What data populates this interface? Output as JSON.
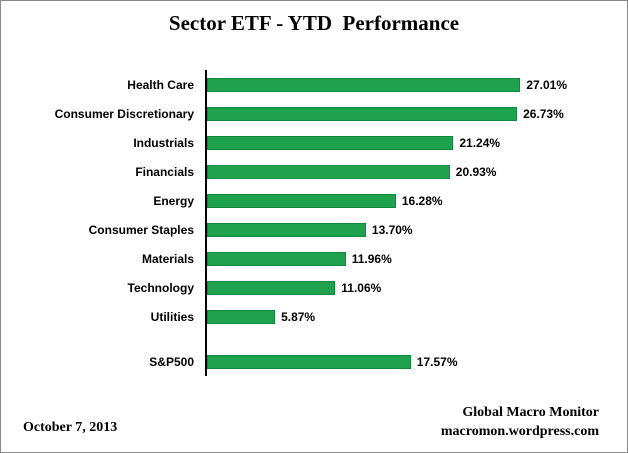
{
  "chart_data": {
    "type": "bar",
    "orientation": "horizontal",
    "title": "Sector ETF - YTD  Performance",
    "categories": [
      "Health Care",
      "Consumer Discretionary",
      "Industrials",
      "Financials",
      "Energy",
      "Consumer Staples",
      "Materials",
      "Technology",
      "Utilities",
      "S&P500"
    ],
    "values": [
      27.01,
      26.73,
      21.24,
      20.93,
      16.28,
      13.7,
      11.96,
      11.06,
      5.87,
      17.57
    ],
    "value_suffix": "%",
    "gap_before_index": 9,
    "xlim": [
      0,
      28
    ],
    "grid": false,
    "legend": "none",
    "bar_color": "#1FA24D",
    "bar_border_color": "#0E8A3D"
  },
  "footer": {
    "date": "October 7, 2013",
    "source_line1": "Global Macro Monitor",
    "source_line2": "macromon.wordpress.com"
  }
}
